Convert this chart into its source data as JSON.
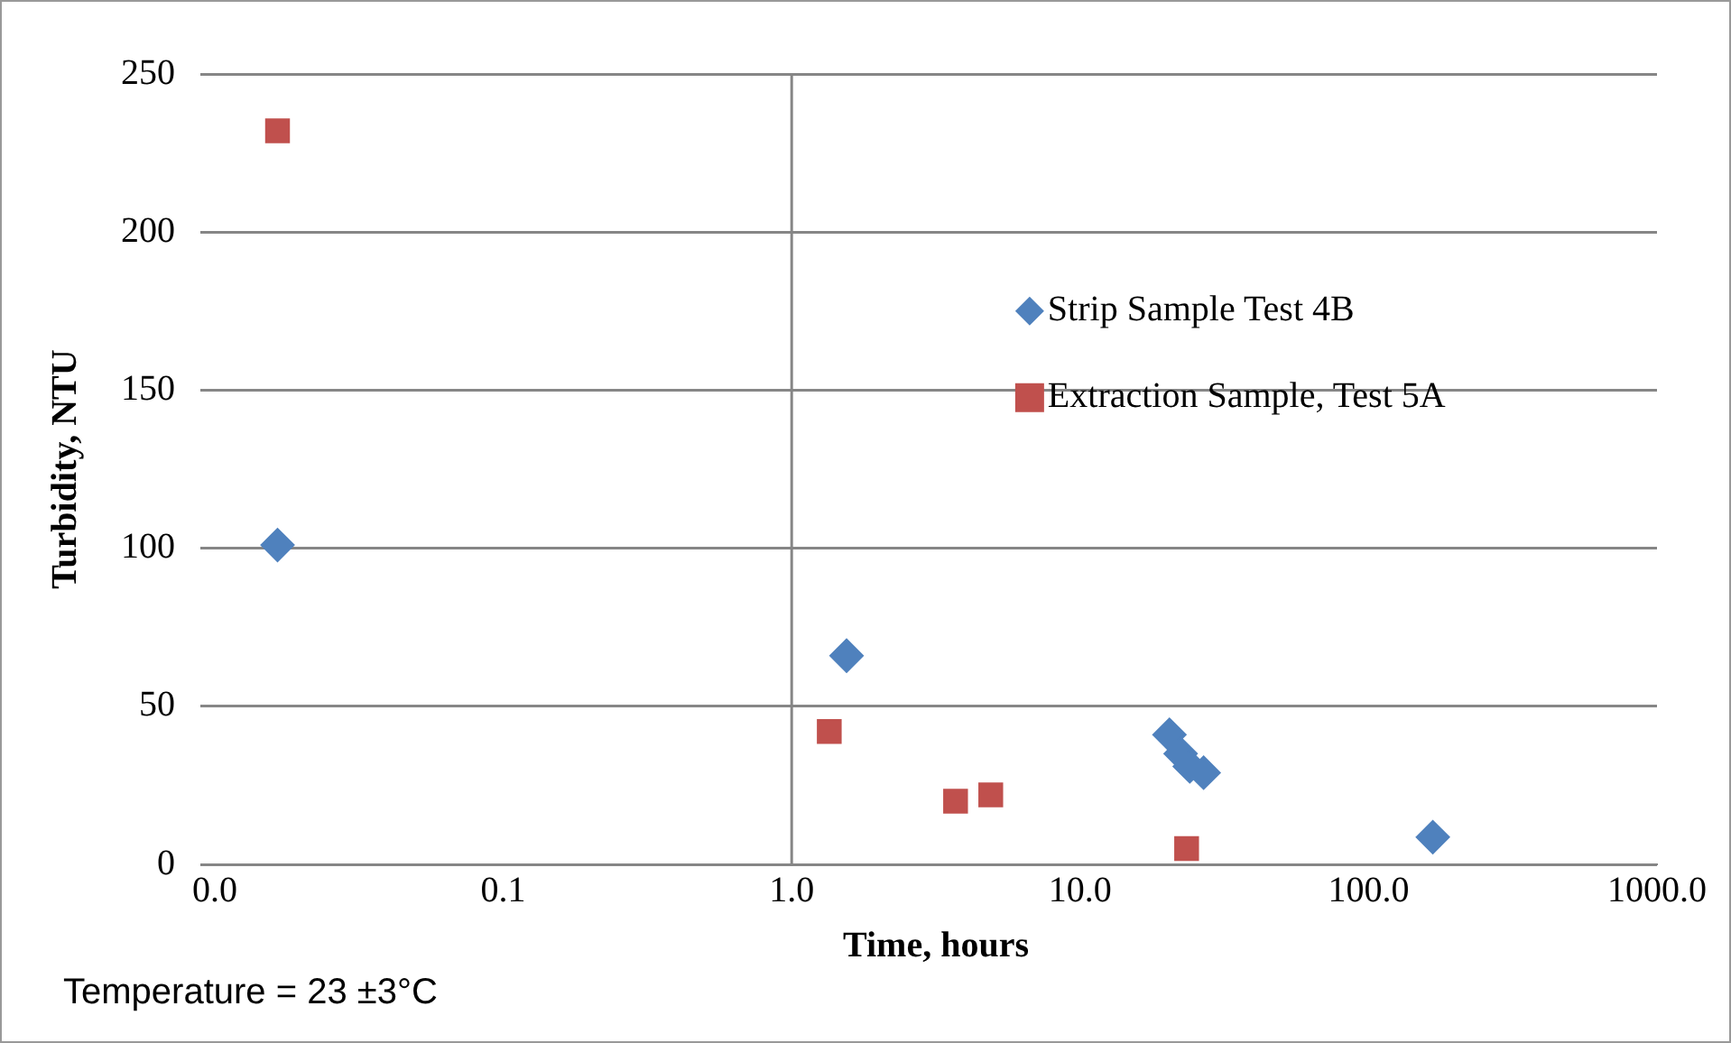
{
  "chart_data": {
    "type": "scatter",
    "xlabel": "Time, hours",
    "ylabel": "Turbidity, NTU",
    "log": "x",
    "xlim": [
      0.01,
      1000
    ],
    "xticks": [
      {
        "value": 0.01,
        "label": "0.0"
      },
      {
        "value": 0.1,
        "label": "0.1"
      },
      {
        "value": 1,
        "label": "1.0"
      },
      {
        "value": 10,
        "label": "10.0"
      },
      {
        "value": 100,
        "label": "100.0"
      },
      {
        "value": 1000,
        "label": "1000.0"
      }
    ],
    "ylim": [
      0,
      250
    ],
    "yticks": [
      0,
      50,
      100,
      150,
      200,
      250
    ],
    "grid": "y",
    "legend": "right",
    "ref_lines": [
      {
        "axis": "x",
        "value": 1,
        "color": "#868686"
      }
    ],
    "annotations": [
      "Temperature = 23 ±3°C"
    ],
    "series": [
      {
        "name": "Strip Sample Test 4B",
        "color": "#4f81bd",
        "marker": "diamond",
        "x": [
          0.0165,
          1.55,
          20.4,
          22.3,
          24,
          26.8,
          167
        ],
        "values": [
          101,
          66,
          41,
          35,
          31,
          29,
          8.6
        ]
      },
      {
        "name": "Extraction Sample, Test 5A",
        "color": "#c0504d",
        "marker": "square",
        "x": [
          0.0165,
          1.35,
          3.7,
          4.9,
          23.4
        ],
        "values": [
          232,
          42,
          20,
          22,
          5
        ]
      }
    ]
  }
}
